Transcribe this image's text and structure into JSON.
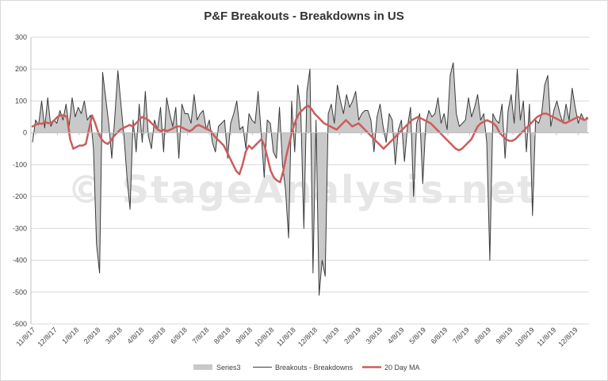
{
  "chart_data": {
    "type": "line",
    "title": "P&F Breakouts - Breakdowns in US",
    "watermark": "© StageAnalysis.net",
    "ylim": [
      -600,
      300
    ],
    "yticks": [
      "300",
      "200",
      "100",
      "0",
      "-100",
      "-200",
      "-300",
      "-400",
      "-500",
      "-600"
    ],
    "xticks": [
      "11/8/17",
      "12/8/17",
      "1/8/18",
      "2/8/18",
      "3/8/18",
      "4/8/18",
      "5/8/18",
      "6/8/18",
      "7/8/18",
      "8/8/18",
      "9/8/18",
      "10/8/18",
      "11/8/18",
      "12/8/18",
      "1/8/19",
      "2/8/19",
      "3/8/19",
      "4/8/19",
      "5/8/19",
      "6/8/19",
      "7/8/19",
      "8/8/19",
      "9/8/19",
      "10/8/19",
      "11/8/19",
      "12/8/19"
    ],
    "grid": true,
    "legend_position": "bottom",
    "colors": {
      "series3": "#c9c9c9",
      "breakouts": "#3a3a3a",
      "ma": "#cd5c5c",
      "grid": "#d9d9d9"
    },
    "series": [
      {
        "name": "Series3",
        "style": "area",
        "values": [
          -30,
          40,
          25,
          100,
          15,
          110,
          20,
          40,
          30,
          70,
          40,
          90,
          20,
          110,
          50,
          80,
          60,
          100,
          40,
          55,
          -50,
          -350,
          -440,
          190,
          110,
          30,
          -80,
          50,
          195,
          90,
          -10,
          -140,
          -240,
          40,
          -60,
          90,
          -30,
          130,
          -10,
          -50,
          40,
          10,
          80,
          -60,
          110,
          60,
          20,
          80,
          -80,
          90,
          60,
          60,
          30,
          120,
          40,
          60,
          70,
          10,
          40,
          -30,
          -60,
          20,
          30,
          40,
          -80,
          30,
          60,
          100,
          10,
          20,
          -50,
          60,
          40,
          30,
          130,
          0,
          -140,
          40,
          30,
          -60,
          -80,
          80,
          -100,
          -180,
          -330,
          100,
          -60,
          150,
          70,
          -300,
          130,
          200,
          -440,
          40,
          -510,
          -400,
          -450,
          60,
          90,
          30,
          150,
          100,
          60,
          120,
          80,
          100,
          130,
          40,
          60,
          70,
          70,
          40,
          -60,
          50,
          90,
          20,
          -30,
          60,
          40,
          -100,
          10,
          40,
          -90,
          20,
          80,
          -200,
          30,
          60,
          -160,
          30,
          70,
          50,
          60,
          110,
          30,
          60,
          10,
          180,
          220,
          60,
          20,
          30,
          40,
          110,
          50,
          80,
          120,
          40,
          60,
          -30,
          -400,
          60,
          40,
          30,
          90,
          -80,
          70,
          120,
          30,
          200,
          40,
          100,
          -60,
          90,
          -260,
          40,
          30,
          60,
          150,
          180,
          20,
          70,
          100,
          60,
          30,
          90,
          40,
          140,
          80,
          30,
          60,
          40,
          50
        ]
      },
      {
        "name": "Breakouts - Breakdowns",
        "style": "line",
        "values": [
          -30,
          40,
          25,
          100,
          15,
          110,
          20,
          40,
          30,
          70,
          40,
          90,
          20,
          110,
          50,
          80,
          60,
          100,
          40,
          55,
          -50,
          -350,
          -440,
          190,
          110,
          30,
          -80,
          50,
          195,
          90,
          -10,
          -140,
          -240,
          40,
          -60,
          90,
          -30,
          130,
          -10,
          -50,
          40,
          10,
          80,
          -60,
          110,
          60,
          20,
          80,
          -80,
          90,
          60,
          60,
          30,
          120,
          40,
          60,
          70,
          10,
          40,
          -30,
          -60,
          20,
          30,
          40,
          -80,
          30,
          60,
          100,
          10,
          20,
          -50,
          60,
          40,
          30,
          130,
          0,
          -140,
          40,
          30,
          -60,
          -80,
          80,
          -100,
          -180,
          -330,
          100,
          -60,
          150,
          70,
          -300,
          130,
          200,
          -440,
          40,
          -510,
          -400,
          -450,
          60,
          90,
          30,
          150,
          100,
          60,
          120,
          80,
          100,
          130,
          40,
          60,
          70,
          70,
          40,
          -60,
          50,
          90,
          20,
          -30,
          60,
          40,
          -100,
          10,
          40,
          -90,
          20,
          80,
          -200,
          30,
          60,
          -160,
          30,
          70,
          50,
          60,
          110,
          30,
          60,
          10,
          180,
          220,
          60,
          20,
          30,
          40,
          110,
          50,
          80,
          120,
          40,
          60,
          -30,
          -400,
          60,
          40,
          30,
          90,
          -80,
          70,
          120,
          30,
          200,
          40,
          100,
          -60,
          90,
          -260,
          40,
          30,
          60,
          150,
          180,
          20,
          70,
          100,
          60,
          30,
          90,
          40,
          140,
          80,
          30,
          60,
          40,
          50
        ]
      },
      {
        "name": "20 Day MA",
        "style": "line",
        "values": [
          20,
          25,
          30,
          28,
          35,
          30,
          32,
          40,
          50,
          55,
          55,
          50,
          -20,
          -50,
          -45,
          -40,
          -40,
          -35,
          10,
          55,
          30,
          0,
          -20,
          -30,
          -35,
          -25,
          -10,
          0,
          10,
          15,
          20,
          25,
          20,
          30,
          40,
          50,
          45,
          40,
          30,
          20,
          10,
          5,
          10,
          5,
          10,
          15,
          20,
          20,
          15,
          10,
          5,
          10,
          20,
          25,
          20,
          15,
          10,
          5,
          -10,
          -20,
          -30,
          -40,
          -60,
          -80,
          -100,
          -120,
          -130,
          -100,
          -60,
          -40,
          -50,
          -40,
          -30,
          -20,
          -40,
          -80,
          -120,
          -140,
          -150,
          -155,
          -120,
          -70,
          -30,
          10,
          40,
          60,
          70,
          80,
          85,
          75,
          60,
          50,
          40,
          30,
          25,
          20,
          15,
          10,
          20,
          30,
          40,
          30,
          20,
          25,
          30,
          20,
          10,
          0,
          -10,
          -20,
          -30,
          -40,
          -50,
          -40,
          -30,
          -20,
          -10,
          0,
          10,
          20,
          30,
          40,
          45,
          50,
          45,
          40,
          35,
          30,
          20,
          10,
          0,
          -10,
          -20,
          -30,
          -40,
          -50,
          -55,
          -50,
          -40,
          -30,
          -20,
          0,
          20,
          30,
          35,
          40,
          35,
          30,
          20,
          0,
          -10,
          -20,
          -25,
          -25,
          -20,
          -10,
          0,
          10,
          20,
          30,
          40,
          50,
          55,
          60,
          60,
          55,
          50,
          45,
          40,
          35,
          30,
          35,
          40,
          45,
          50,
          45,
          40,
          45
        ]
      }
    ]
  },
  "legend": {
    "items": [
      {
        "label": "Series3",
        "kind": "area"
      },
      {
        "label": "Breakouts - Breakdowns",
        "kind": "thin-line"
      },
      {
        "label": "20 Day MA",
        "kind": "thick-line"
      }
    ]
  }
}
